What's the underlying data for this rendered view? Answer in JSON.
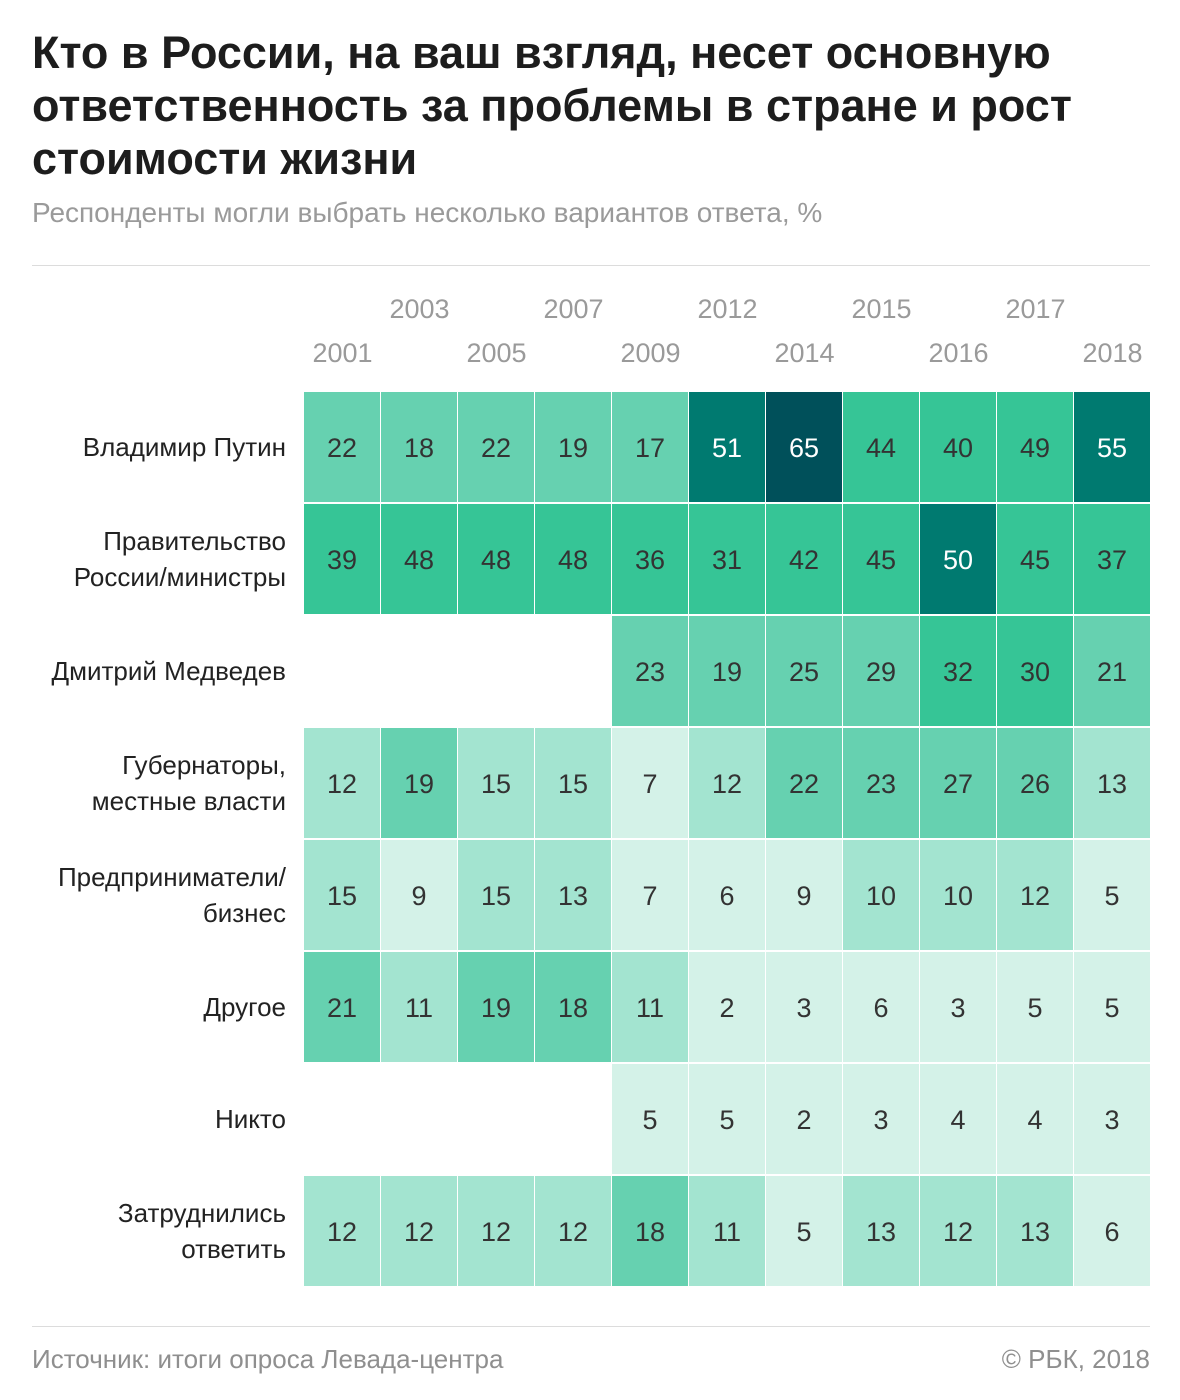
{
  "title": "Кто в России, на ваш взгляд, несет основную ответственность за проблемы в стране и рост стоимости жизни",
  "subtitle": "Респонденты могли выбрать несколько вариантов ответа, %",
  "source": "Источник: итоги опроса Левада-центра",
  "credit": "© РБК, 2018",
  "chart_data": {
    "type": "heatmap",
    "unit": "%",
    "columns": [
      "2001",
      "2003",
      "2005",
      "2007",
      "2009",
      "2012",
      "2014",
      "2015",
      "2016",
      "2017",
      "2018"
    ],
    "rows": [
      {
        "label": [
          "Владимир Путин"
        ],
        "values": [
          22,
          18,
          22,
          19,
          17,
          51,
          65,
          44,
          40,
          49,
          55
        ]
      },
      {
        "label": [
          "Правительство",
          "России/министры"
        ],
        "values": [
          39,
          48,
          48,
          48,
          36,
          31,
          42,
          45,
          50,
          45,
          37
        ]
      },
      {
        "label": [
          "Дмитрий Медведев"
        ],
        "values": [
          null,
          null,
          null,
          null,
          23,
          19,
          25,
          29,
          32,
          30,
          21
        ]
      },
      {
        "label": [
          "Губернаторы,",
          "местные власти"
        ],
        "values": [
          12,
          19,
          15,
          15,
          7,
          12,
          22,
          23,
          27,
          26,
          13
        ]
      },
      {
        "label": [
          "Предприниматели/",
          "бизнес"
        ],
        "values": [
          15,
          9,
          15,
          13,
          7,
          6,
          9,
          10,
          10,
          12,
          5
        ]
      },
      {
        "label": [
          "Другое"
        ],
        "values": [
          21,
          11,
          19,
          18,
          11,
          2,
          3,
          6,
          3,
          5,
          5
        ]
      },
      {
        "label": [
          "Никто"
        ],
        "values": [
          null,
          null,
          null,
          null,
          5,
          5,
          2,
          3,
          4,
          4,
          3
        ]
      },
      {
        "label": [
          "Затруднились",
          "ответить"
        ],
        "values": [
          12,
          12,
          12,
          12,
          18,
          11,
          5,
          13,
          12,
          13,
          6
        ]
      }
    ],
    "color_scale": [
      {
        "max": 9,
        "color": "#d4f2e8"
      },
      {
        "max": 16,
        "color": "#a3e4d0"
      },
      {
        "max": 29,
        "color": "#66d1b0"
      },
      {
        "max": 49,
        "color": "#36c596"
      },
      {
        "max": 59,
        "color": "#007a70"
      },
      {
        "max": 100,
        "color": "#00505a"
      }
    ],
    "text_colors": {
      "dark": "#333333",
      "light": "#ffffff"
    },
    "light_text_threshold": 50
  }
}
